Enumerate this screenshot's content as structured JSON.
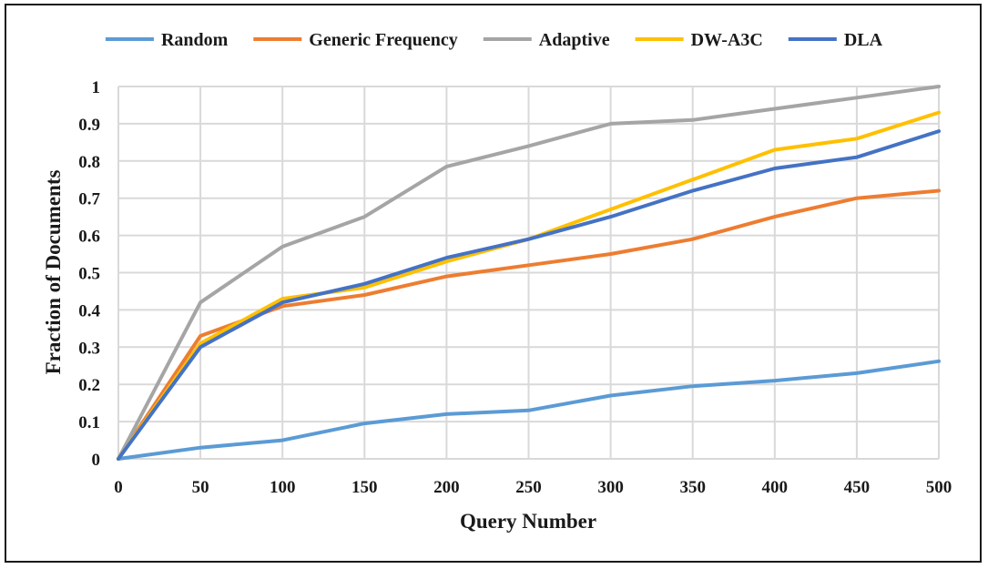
{
  "chart_data": {
    "type": "line",
    "title": "",
    "xlabel": "Query Number",
    "ylabel": "Fraction of Documents",
    "x": [
      0,
      50,
      100,
      150,
      200,
      250,
      300,
      350,
      400,
      450,
      500
    ],
    "xticks": [
      "0",
      "50",
      "100",
      "150",
      "200",
      "250",
      "300",
      "350",
      "400",
      "450",
      "500"
    ],
    "yticks": [
      "0",
      "0.1",
      "0.2",
      "0.3",
      "0.4",
      "0.5",
      "0.6",
      "0.7",
      "0.8",
      "0.9",
      "1"
    ],
    "xlim": [
      0,
      500
    ],
    "ylim": [
      0,
      1
    ],
    "grid": true,
    "legend_position": "top",
    "series": [
      {
        "name": "Random",
        "color": "#5B9BD5",
        "values": [
          0,
          0.03,
          0.05,
          0.095,
          0.12,
          0.13,
          0.17,
          0.195,
          0.21,
          0.23,
          0.262
        ]
      },
      {
        "name": "Generic Frequency",
        "color": "#ED7D31",
        "values": [
          0,
          0.33,
          0.41,
          0.44,
          0.49,
          0.52,
          0.55,
          0.59,
          0.65,
          0.7,
          0.72
        ]
      },
      {
        "name": "Adaptive",
        "color": "#A5A5A5",
        "values": [
          0,
          0.42,
          0.57,
          0.65,
          0.785,
          0.84,
          0.9,
          0.91,
          0.94,
          0.97,
          1.0
        ]
      },
      {
        "name": "DW-A3C",
        "color": "#FFC000",
        "values": [
          0,
          0.31,
          0.43,
          0.46,
          0.53,
          0.59,
          0.67,
          0.75,
          0.83,
          0.86,
          0.93
        ]
      },
      {
        "name": "DLA",
        "color": "#4472C4",
        "values": [
          0,
          0.3,
          0.42,
          0.47,
          0.54,
          0.59,
          0.65,
          0.72,
          0.78,
          0.81,
          0.88
        ]
      }
    ]
  }
}
